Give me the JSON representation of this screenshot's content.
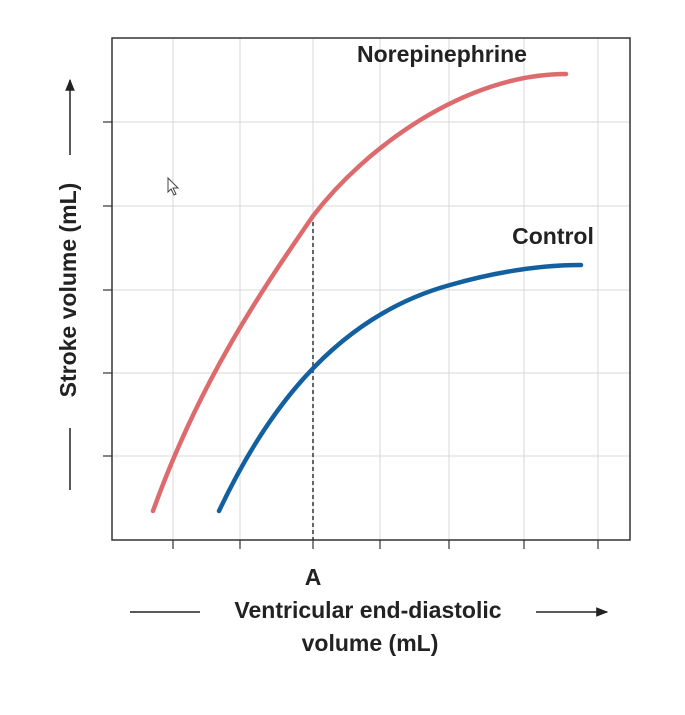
{
  "curves": [
    {
      "label": "Norepinephrine"
    },
    {
      "label": "Control"
    }
  ],
  "marker": "A",
  "y_axis": {
    "label": "Stroke volume (mL)"
  },
  "x_axis": {
    "label_lines": [
      "Ventricular end-diastolic",
      "volume (mL)"
    ]
  }
}
